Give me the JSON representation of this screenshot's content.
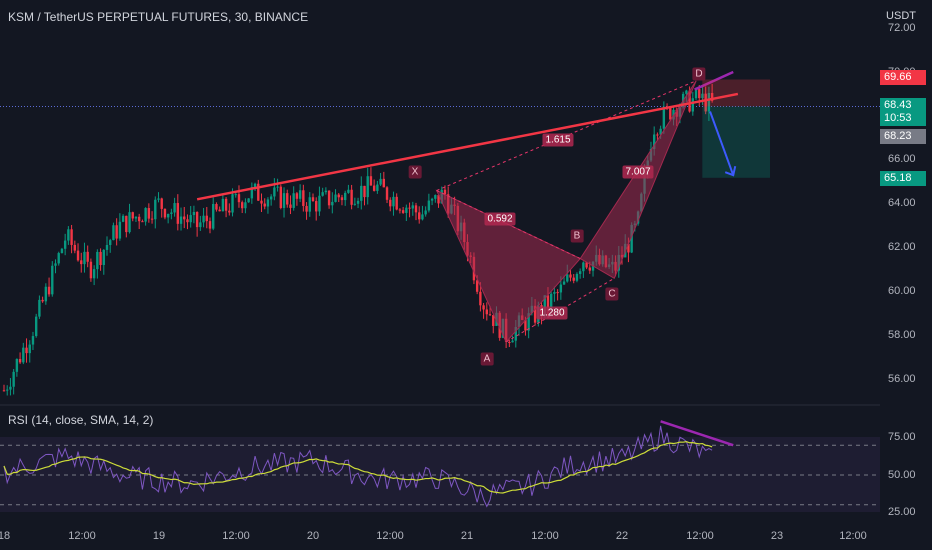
{
  "header": {
    "title": "KSM / TetherUS PERPETUAL FUTURES, 30, BINANCE",
    "currency": "USDT"
  },
  "rsi_panel": {
    "label": "RSI (14, close, SMA, 14, 2)"
  },
  "price_axis": {
    "ticks": [
      "72.00",
      "70.00",
      "66.00",
      "64.00",
      "62.00",
      "60.00",
      "58.00",
      "56.00"
    ]
  },
  "rsi_axis": {
    "ticks": [
      "75.00",
      "50.00",
      "25.00"
    ]
  },
  "price_tags": [
    {
      "text": "69.66",
      "color": "#f23645"
    },
    {
      "text": "68.43",
      "sub": "10:53",
      "color": "#089981"
    },
    {
      "text": "68.23",
      "color": "#787b86"
    },
    {
      "text": "65.18",
      "color": "#089981"
    }
  ],
  "time_axis": {
    "ticks": [
      "18",
      "12:00",
      "19",
      "12:00",
      "20",
      "12:00",
      "21",
      "12:00",
      "22",
      "12:00",
      "23",
      "12:00"
    ]
  },
  "pattern": {
    "points": {
      "X": "X",
      "A": "A",
      "B": "B",
      "C": "C",
      "D": "D"
    },
    "ratios": {
      "xb": "0.592",
      "ac": "1.280",
      "bd": "7.007",
      "xd": "1.615"
    }
  },
  "colors": {
    "background": "#131722",
    "up": "#089981",
    "down": "#f23645",
    "trendline": "#f23645",
    "divergence": "#9c27b0",
    "rsi_line": "#7e57c2",
    "rsi_ma": "#cddc39",
    "pattern_fill": "#a3294f"
  },
  "chart_data": {
    "type": "candlestick",
    "symbol": "KSM / TetherUS PERPETUAL FUTURES",
    "interval": "30",
    "exchange": "BINANCE",
    "ylim": [
      55,
      72
    ],
    "x_labels": [
      "18",
      "12:00",
      "19",
      "12:00",
      "20",
      "12:00",
      "21",
      "12:00",
      "22",
      "12:00",
      "23",
      "12:00"
    ],
    "price_path": [
      {
        "day": 18.0,
        "price": 55.5
      },
      {
        "day": 18.2,
        "price": 58.5
      },
      {
        "day": 18.4,
        "price": 62.5
      },
      {
        "day": 18.55,
        "price": 61.0
      },
      {
        "day": 18.75,
        "price": 63.0
      },
      {
        "day": 19.0,
        "price": 64.0
      },
      {
        "day": 19.25,
        "price": 63.0
      },
      {
        "day": 19.6,
        "price": 64.5
      },
      {
        "day": 20.0,
        "price": 64.0
      },
      {
        "day": 20.4,
        "price": 64.8
      },
      {
        "day": 20.7,
        "price": 63.5
      },
      {
        "day": 20.85,
        "price": 64.5
      },
      {
        "day": 21.0,
        "price": 62.0
      },
      {
        "day": 21.1,
        "price": 59.5
      },
      {
        "day": 21.25,
        "price": 58.0
      },
      {
        "day": 21.45,
        "price": 59.0
      },
      {
        "day": 21.6,
        "price": 60.0
      },
      {
        "day": 21.75,
        "price": 61.5
      },
      {
        "day": 21.95,
        "price": 61.0
      },
      {
        "day": 22.1,
        "price": 63.0
      },
      {
        "day": 22.2,
        "price": 67.5
      },
      {
        "day": 22.35,
        "price": 68.5
      },
      {
        "day": 22.5,
        "price": 68.8
      },
      {
        "day": 22.6,
        "price": 68.43
      }
    ],
    "trendline": [
      {
        "day": 19.25,
        "price": 64.2
      },
      {
        "day": 22.75,
        "price": 69.0
      }
    ],
    "harmonic_points": [
      {
        "label": "X",
        "day": 20.8,
        "price": 64.6
      },
      {
        "label": "A",
        "day": 21.25,
        "price": 57.7
      },
      {
        "label": "B",
        "day": 21.73,
        "price": 61.5
      },
      {
        "label": "C",
        "day": 21.95,
        "price": 60.6
      },
      {
        "label": "D",
        "day": 22.48,
        "price": 69.6
      }
    ],
    "position": {
      "entry": 68.43,
      "stop": 69.66,
      "target": 65.18
    },
    "rsi": {
      "ylim": [
        20,
        90
      ],
      "levels": [
        70,
        50,
        30
      ],
      "path": [
        {
          "day": 18.0,
          "value": 52
        },
        {
          "day": 18.4,
          "value": 63
        },
        {
          "day": 18.8,
          "value": 49
        },
        {
          "day": 19.2,
          "value": 44
        },
        {
          "day": 19.6,
          "value": 55
        },
        {
          "day": 20.0,
          "value": 60
        },
        {
          "day": 20.4,
          "value": 47
        },
        {
          "day": 20.8,
          "value": 48
        },
        {
          "day": 21.1,
          "value": 36
        },
        {
          "day": 21.4,
          "value": 43
        },
        {
          "day": 21.7,
          "value": 58
        },
        {
          "day": 22.0,
          "value": 61
        },
        {
          "day": 22.25,
          "value": 76
        },
        {
          "day": 22.5,
          "value": 66
        },
        {
          "day": 22.6,
          "value": 58
        }
      ]
    }
  }
}
